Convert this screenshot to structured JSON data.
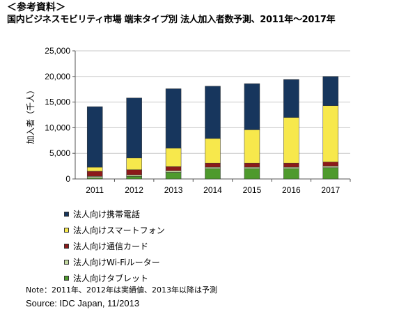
{
  "header": {
    "reference_label": "＜参考資料＞",
    "title": "国内ビジネスモビリティ市場 端末タイプ別 法人加入者数予測、2011年〜2017年"
  },
  "chart_data": {
    "type": "bar",
    "stacked": true,
    "categories": [
      "2011",
      "2012",
      "2013",
      "2014",
      "2015",
      "2016",
      "2017"
    ],
    "series": [
      {
        "name": "法人向けタブレット",
        "color": "#4e9a2d",
        "values": [
          200,
          500,
          1300,
          2000,
          2000,
          2000,
          2200
        ]
      },
      {
        "name": "法人向けWi-Fiルーター",
        "color": "#c4d9a0",
        "values": [
          300,
          300,
          300,
          300,
          300,
          300,
          300
        ]
      },
      {
        "name": "法人向け通信カード",
        "color": "#8b1a1a",
        "values": [
          1000,
          1000,
          800,
          800,
          800,
          800,
          800
        ]
      },
      {
        "name": "法人向けスマートフォン",
        "color": "#f7e84c",
        "values": [
          800,
          2300,
          3600,
          4800,
          6500,
          8900,
          11000
        ]
      },
      {
        "name": "法人向け携帯電話",
        "color": "#17365d",
        "values": [
          11800,
          11700,
          11600,
          10200,
          9000,
          7400,
          5700
        ]
      }
    ],
    "ylabel": "加入者（千人）",
    "yticks": [
      "0",
      "5,000",
      "10,000",
      "15,000",
      "20,000",
      "25,000"
    ],
    "ylim": [
      0,
      25000
    ],
    "grid": true,
    "legend_position": "bottom-left"
  },
  "legend_order": [
    {
      "name": "法人向け携帯電話",
      "color": "#17365d"
    },
    {
      "name": "法人向けスマートフォン",
      "color": "#f7e84c"
    },
    {
      "name": "法人向け通信カード",
      "color": "#8b1a1a"
    },
    {
      "name": "法人向けWi-Fiルーター",
      "color": "#c4d9a0"
    },
    {
      "name": "法人向けタブレット",
      "color": "#4e9a2d"
    }
  ],
  "footer": {
    "note": "Note：2011年、2012年は実績値、2013年以降は予測",
    "source": "Source: IDC Japan, 11/2013"
  }
}
